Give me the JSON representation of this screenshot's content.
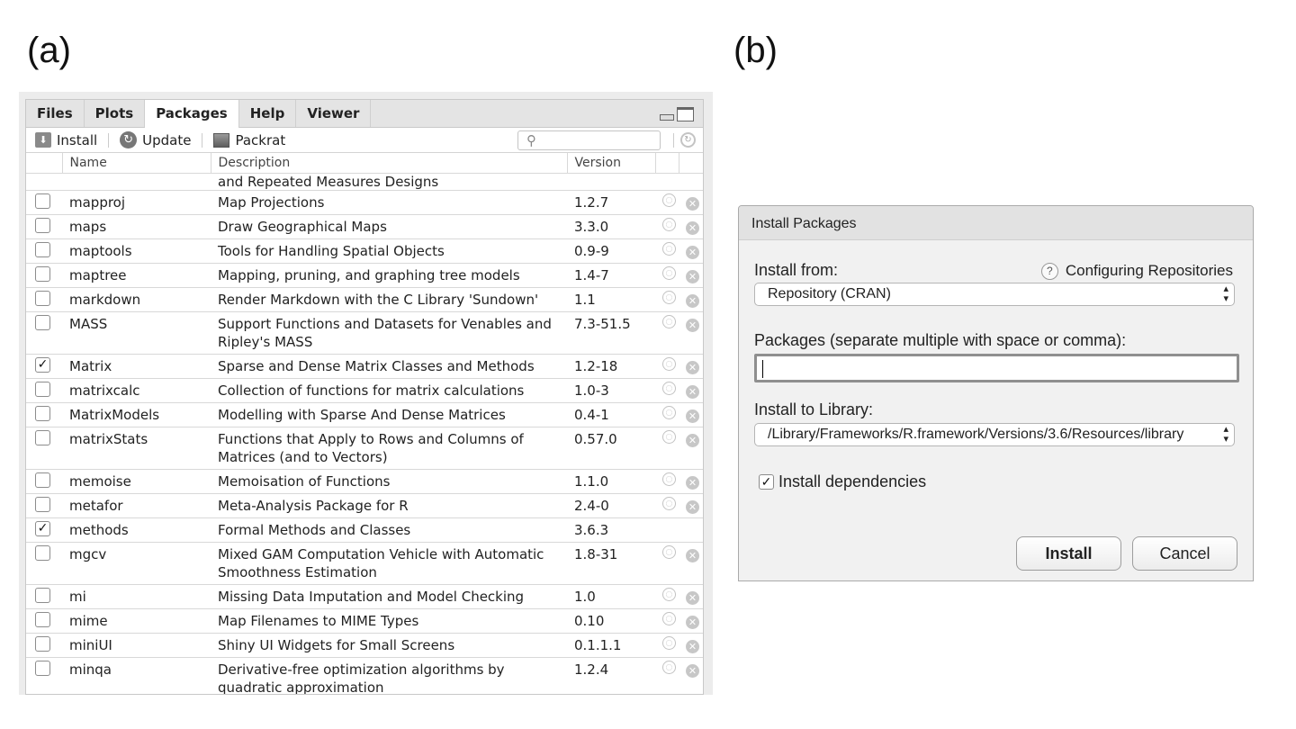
{
  "labels": {
    "a": "(a)",
    "b": "(b)"
  },
  "tabs": [
    "Files",
    "Plots",
    "Packages",
    "Help",
    "Viewer"
  ],
  "toolbar": {
    "install": "Install",
    "update": "Update",
    "packrat": "Packrat",
    "search_placeholder": ""
  },
  "columns": {
    "name": "Name",
    "description": "Description",
    "version": "Version"
  },
  "continuation": "and Repeated Measures Designs",
  "packages": [
    {
      "name": "mapproj",
      "desc": "Map Projections",
      "desc2": "",
      "version": "1.2.7",
      "checked": false,
      "web": true
    },
    {
      "name": "maps",
      "desc": "Draw Geographical Maps",
      "desc2": "",
      "version": "3.3.0",
      "checked": false,
      "web": true
    },
    {
      "name": "maptools",
      "desc": "Tools for Handling Spatial Objects",
      "desc2": "",
      "version": "0.9-9",
      "checked": false,
      "web": true
    },
    {
      "name": "maptree",
      "desc": "Mapping, pruning, and graphing tree models",
      "desc2": "",
      "version": "1.4-7",
      "checked": false,
      "web": true
    },
    {
      "name": "markdown",
      "desc": "Render Markdown with the C Library 'Sundown'",
      "desc2": "",
      "version": "1.1",
      "checked": false,
      "web": true
    },
    {
      "name": "MASS",
      "desc": "Support Functions and Datasets for Venables and",
      "desc2": "Ripley's MASS",
      "version": "7.3-51.5",
      "checked": false,
      "web": true
    },
    {
      "name": "Matrix",
      "desc": "Sparse and Dense Matrix Classes and Methods",
      "desc2": "",
      "version": "1.2-18",
      "checked": true,
      "web": true
    },
    {
      "name": "matrixcalc",
      "desc": "Collection of functions for matrix calculations",
      "desc2": "",
      "version": "1.0-3",
      "checked": false,
      "web": true
    },
    {
      "name": "MatrixModels",
      "desc": "Modelling with Sparse And Dense Matrices",
      "desc2": "",
      "version": "0.4-1",
      "checked": false,
      "web": true
    },
    {
      "name": "matrixStats",
      "desc": "Functions that Apply to Rows and Columns of",
      "desc2": "Matrices (and to Vectors)",
      "version": "0.57.0",
      "checked": false,
      "web": true
    },
    {
      "name": "memoise",
      "desc": "Memoisation of Functions",
      "desc2": "",
      "version": "1.1.0",
      "checked": false,
      "web": true
    },
    {
      "name": "metafor",
      "desc": "Meta-Analysis Package for R",
      "desc2": "",
      "version": "2.4-0",
      "checked": false,
      "web": true
    },
    {
      "name": "methods",
      "desc": "Formal Methods and Classes",
      "desc2": "",
      "version": "3.6.3",
      "checked": true,
      "web": false
    },
    {
      "name": "mgcv",
      "desc": "Mixed GAM Computation Vehicle with Automatic",
      "desc2": "Smoothness Estimation",
      "version": "1.8-31",
      "checked": false,
      "web": true
    },
    {
      "name": "mi",
      "desc": "Missing Data Imputation and Model Checking",
      "desc2": "",
      "version": "1.0",
      "checked": false,
      "web": true
    },
    {
      "name": "mime",
      "desc": "Map Filenames to MIME Types",
      "desc2": "",
      "version": "0.10",
      "checked": false,
      "web": true
    },
    {
      "name": "miniUI",
      "desc": "Shiny UI Widgets for Small Screens",
      "desc2": "",
      "version": "0.1.1.1",
      "checked": false,
      "web": true
    },
    {
      "name": "minqa",
      "desc": "Derivative-free optimization algorithms by",
      "desc2": "quadratic approximation",
      "version": "1.2.4",
      "checked": false,
      "web": true
    }
  ],
  "dialog": {
    "title": "Install Packages",
    "install_from_label": "Install from:",
    "help_link": "Configuring Repositories",
    "install_from_value": "Repository (CRAN)",
    "packages_label": "Packages (separate multiple with space or comma):",
    "packages_value": "",
    "library_label": "Install to Library:",
    "library_value": "/Library/Frameworks/R.framework/Versions/3.6/Resources/library",
    "dependencies_label": "Install dependencies",
    "dependencies_checked": true,
    "install_button": "Install",
    "cancel_button": "Cancel"
  }
}
